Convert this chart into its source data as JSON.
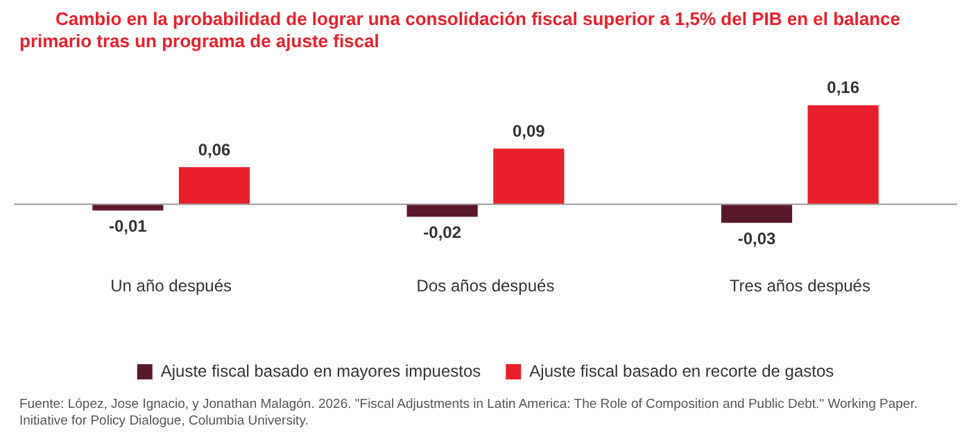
{
  "chart_data": {
    "type": "bar",
    "title": "Cambio en la probabilidad de lograr una consolidación fiscal superior a 1,5% del PIB en el balance primario tras un programa de ajuste fiscal",
    "categories": [
      "Un año después",
      "Dos años después",
      "Tres años después"
    ],
    "series": [
      {
        "name": "Ajuste fiscal basado en mayores impuestos",
        "color": "#5b1a2a",
        "values": [
          -0.01,
          -0.02,
          -0.03
        ],
        "value_labels": [
          "-0,01",
          "-0,02",
          "-0,03"
        ]
      },
      {
        "name": "Ajuste fiscal basado en recorte de gastos",
        "color": "#e8202a",
        "values": [
          0.06,
          0.09,
          0.16
        ],
        "value_labels": [
          "0,06",
          "0,09",
          "0,16"
        ]
      }
    ],
    "relative": false,
    "legend": "bottom",
    "grid": false,
    "annotations": [
      "Fuente: López, Jose Ignacio, y Jonathan Malagón. 2026. \"Fiscal Adjustments in Latin America: The Role of Composition and Public Debt.\" Working Paper. Initiative for Policy Dialogue, Columbia University."
    ]
  }
}
